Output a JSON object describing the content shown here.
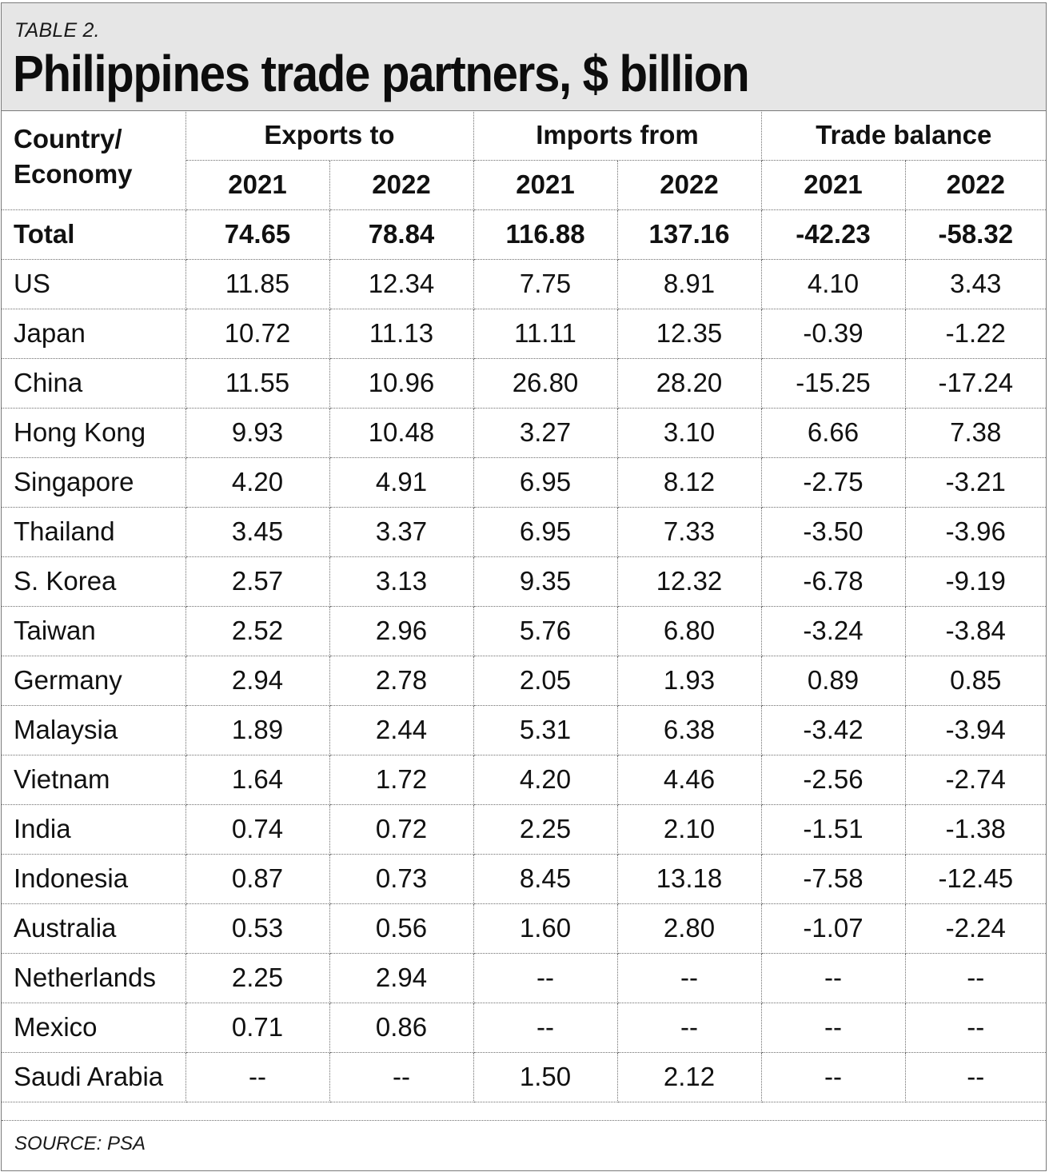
{
  "table_label": "TABLE 2.",
  "title": "Philippines trade partners, $ billion",
  "source": "SOURCE: PSA",
  "header": {
    "country": "Country/ Economy",
    "groups": [
      "Exports to",
      "Imports from",
      "Trade balance"
    ],
    "years": [
      "2021",
      "2022",
      "2021",
      "2022",
      "2021",
      "2022"
    ]
  },
  "rows": [
    {
      "name": "Total",
      "values": [
        "74.65",
        "78.84",
        "116.88",
        "137.16",
        "-42.23",
        "-58.32"
      ]
    },
    {
      "name": "US",
      "values": [
        "11.85",
        "12.34",
        "7.75",
        "8.91",
        "4.10",
        "3.43"
      ]
    },
    {
      "name": "Japan",
      "values": [
        "10.72",
        "11.13",
        "11.11",
        "12.35",
        "-0.39",
        "-1.22"
      ]
    },
    {
      "name": "China",
      "values": [
        "11.55",
        "10.96",
        "26.80",
        "28.20",
        "-15.25",
        "-17.24"
      ]
    },
    {
      "name": "Hong Kong",
      "values": [
        "9.93",
        "10.48",
        "3.27",
        "3.10",
        "6.66",
        "7.38"
      ]
    },
    {
      "name": "Singapore",
      "values": [
        "4.20",
        "4.91",
        "6.95",
        "8.12",
        "-2.75",
        "-3.21"
      ]
    },
    {
      "name": "Thailand",
      "values": [
        "3.45",
        "3.37",
        "6.95",
        "7.33",
        "-3.50",
        "-3.96"
      ]
    },
    {
      "name": "S. Korea",
      "values": [
        "2.57",
        "3.13",
        "9.35",
        "12.32",
        "-6.78",
        "-9.19"
      ]
    },
    {
      "name": "Taiwan",
      "values": [
        "2.52",
        "2.96",
        "5.76",
        "6.80",
        "-3.24",
        "-3.84"
      ]
    },
    {
      "name": "Germany",
      "values": [
        "2.94",
        "2.78",
        "2.05",
        "1.93",
        "0.89",
        "0.85"
      ]
    },
    {
      "name": "Malaysia",
      "values": [
        "1.89",
        "2.44",
        "5.31",
        "6.38",
        "-3.42",
        "-3.94"
      ]
    },
    {
      "name": "Vietnam",
      "values": [
        "1.64",
        "1.72",
        "4.20",
        "4.46",
        "-2.56",
        "-2.74"
      ]
    },
    {
      "name": "India",
      "values": [
        "0.74",
        "0.72",
        "2.25",
        "2.10",
        "-1.51",
        "-1.38"
      ]
    },
    {
      "name": "Indonesia",
      "values": [
        "0.87",
        "0.73",
        "8.45",
        "13.18",
        "-7.58",
        "-12.45"
      ]
    },
    {
      "name": "Australia",
      "values": [
        "0.53",
        "0.56",
        "1.60",
        "2.80",
        "-1.07",
        "-2.24"
      ]
    },
    {
      "name": "Netherlands",
      "values": [
        "2.25",
        "2.94",
        "--",
        "--",
        "--",
        "--"
      ]
    },
    {
      "name": "Mexico",
      "values": [
        "0.71",
        "0.86",
        "--",
        "--",
        "--",
        "--"
      ]
    },
    {
      "name": "Saudi Arabia",
      "values": [
        "--",
        "--",
        "1.50",
        "2.12",
        "--",
        "--"
      ]
    }
  ]
}
